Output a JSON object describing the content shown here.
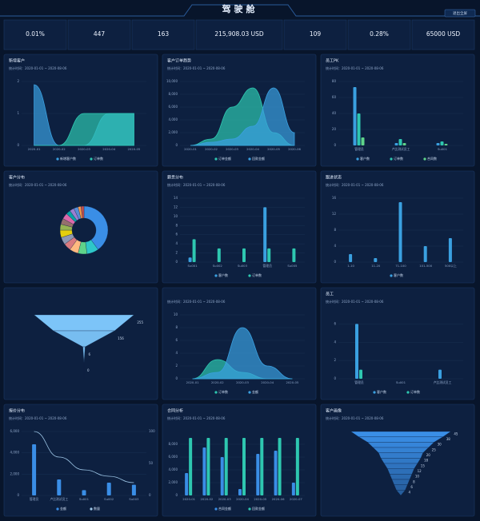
{
  "header": {
    "title": "驾驶舱",
    "button": "退出全屏"
  },
  "kpis": [
    "0.01%",
    "447",
    "163",
    "215,908.03 USD",
    "109",
    "0.28%",
    "65000 USD"
  ],
  "date": "统计时间：2020-01-01 ~ 2020-08-06",
  "panels": [
    {
      "title": "新增客户",
      "chart": {
        "type": "area",
        "categories": [
          "2020-01",
          "2020-02",
          "2020-03",
          "2020-04",
          "2020-05"
        ],
        "series": [
          {
            "name": "新增客户数",
            "color": "#3aa0e0",
            "values": [
              1.9,
              0,
              0,
              1,
              1
            ]
          },
          {
            "name": "订单数",
            "color": "#2ec7b0",
            "values": [
              0,
              0,
              1,
              1,
              1
            ]
          }
        ],
        "ylim": [
          0,
          2
        ],
        "yticks": [
          0,
          1,
          2
        ]
      }
    },
    {
      "title": "客户订单趋势",
      "chart": {
        "type": "area",
        "categories": [
          "2020-01",
          "2020-02",
          "2020-03",
          "2020-04",
          "2020-05",
          "2020-06"
        ],
        "series": [
          {
            "name": "订单金额",
            "color": "#2ec7b0",
            "values": [
              0,
              1000,
              6000,
              9000,
              2000,
              0
            ]
          },
          {
            "name": "回款金额",
            "color": "#3aa0e0",
            "values": [
              0,
              500,
              1000,
              3000,
              9000,
              2000
            ]
          }
        ],
        "ylim": [
          0,
          10000
        ],
        "yticks": [
          0,
          {
            "value": 2000,
            "label": "2,000"
          },
          {
            "value": 4000,
            "label": "4,000"
          },
          {
            "value": 6000,
            "label": "6,000"
          },
          {
            "value": 8000,
            "label": "8,000"
          },
          {
            "value": 10000,
            "label": "10,000"
          }
        ]
      }
    },
    {
      "title": "员工PK",
      "chart": {
        "type": "bar",
        "categories": [
          "管理员",
          "卢比测试员工",
          "Su001"
        ],
        "series": [
          {
            "name": "客户数",
            "color": "#3aa0e0",
            "values": [
              73,
              3,
              3
            ]
          },
          {
            "name": "订单数",
            "color": "#2ec7b0",
            "values": [
              40,
              8,
              5
            ]
          },
          {
            "name": "合同数",
            "color": "#5fd48a",
            "values": [
              10,
              3,
              2
            ]
          }
        ],
        "ylim": [
          0,
          80
        ],
        "yticks": [
          0,
          20,
          40,
          60,
          80
        ]
      }
    },
    {
      "title": "客户分布",
      "chart": {
        "type": "pie",
        "values": [
          40,
          8,
          6,
          6,
          5,
          5,
          5,
          4,
          4,
          4,
          3,
          3,
          3,
          2,
          2
        ],
        "colors": [
          "#3a8ee6",
          "#2ec7c9",
          "#5fd48a",
          "#ffb980",
          "#d87a80",
          "#8d98b3",
          "#e5cf0d",
          "#97b552",
          "#95706d",
          "#dc69aa",
          "#07a2a4",
          "#9a7fd1",
          "#588dd5",
          "#f5994e",
          "#c05050"
        ]
      }
    },
    {
      "title": "籍贯分布",
      "chart": {
        "type": "bar",
        "categories": [
          "Su001",
          "Su002",
          "Su003",
          "管理员",
          "Su005"
        ],
        "series": [
          {
            "name": "客户数",
            "color": "#3aa0e0",
            "values": [
              1,
              0,
              0,
              12,
              0
            ]
          },
          {
            "name": "订单数",
            "color": "#2ec7b0",
            "values": [
              5,
              3,
              3,
              3,
              3
            ]
          }
        ],
        "ylim": [
          0,
          14
        ],
        "yticks": [
          0,
          2,
          4,
          6,
          8,
          10,
          12,
          14
        ]
      }
    },
    {
      "title": "跟进状态",
      "chart": {
        "type": "bar",
        "categories": [
          "1-10",
          "11-20",
          "71-100",
          "101-500",
          "500以上"
        ],
        "series": [
          {
            "name": "客户数",
            "color": "#3aa0e0",
            "values": [
              2,
              1,
              15,
              4,
              6
            ]
          }
        ],
        "ylim": [
          0,
          16
        ],
        "yticks": [
          0,
          4,
          8,
          12,
          16
        ]
      }
    },
    {
      "chart": {
        "type": "funnel",
        "color": "#7cc4f8",
        "values": [
          255,
          156,
          6,
          0
        ]
      }
    },
    {
      "chart": {
        "type": "area",
        "categories": [
          "2020-01",
          "2020-02",
          "2020-03",
          "2020-04",
          "2020-05"
        ],
        "series": [
          {
            "name": "订单数",
            "color": "#2ec7b0",
            "values": [
              0,
              3,
              1,
              0,
              0
            ]
          },
          {
            "name": "金额",
            "color": "#3aa0e0",
            "values": [
              0,
              1,
              8,
              2,
              0
            ]
          }
        ],
        "ylim": [
          0,
          10
        ],
        "yticks": [
          0,
          2,
          4,
          6,
          8,
          10
        ]
      }
    },
    {
      "title": "员工",
      "chart": {
        "type": "bar",
        "categories": [
          "管理员",
          "Su001",
          "卢比测试员工"
        ],
        "series": [
          {
            "name": "客户数",
            "color": "#3aa0e0",
            "values": [
              6,
              0,
              1
            ]
          },
          {
            "name": "订单数",
            "color": "#2ec7b0",
            "values": [
              1,
              0,
              0
            ]
          }
        ],
        "ylim": [
          0,
          7
        ],
        "yticks": [
          0,
          2,
          4,
          6
        ]
      }
    },
    {
      "title": "报价分布",
      "chart": {
        "type": "combo",
        "categories": [
          "管理员",
          "卢比测试员工",
          "Su001",
          "Su002",
          "Su003"
        ],
        "series": [
          {
            "name": "金额",
            "color": "#3a8ee6",
            "values": [
              4800,
              1500,
              500,
              1200,
              1000
            ]
          },
          {
            "name": "数量",
            "color": "#9fc8e8",
            "axis": "y2",
            "values": [
              100,
              60,
              40,
              30,
              20
            ]
          }
        ],
        "ylim": [
          0,
          6000
        ],
        "yticks": [
          0,
          {
            "value": 2000,
            "label": "2,000"
          },
          {
            "value": 4000,
            "label": "4,000"
          },
          {
            "value": 6000,
            "label": "6,000"
          }
        ],
        "y2lim": [
          0,
          100
        ],
        "y2ticks": [
          0,
          50,
          100
        ]
      }
    },
    {
      "title": "合同分析",
      "chart": {
        "type": "bar",
        "categories": [
          "2020-01",
          "2020-02",
          "2020-03",
          "2020-04",
          "2020-05",
          "2020-06",
          "2020-07"
        ],
        "series": [
          {
            "name": "合同金额",
            "color": "#3a8ee6",
            "values": [
              3500,
              7500,
              6000,
              1000,
              6500,
              7000,
              2000
            ]
          },
          {
            "name": "回款金额",
            "color": "#2ec7b0",
            "values": [
              9000,
              9000,
              9000,
              9000,
              9000,
              9000,
              9000
            ]
          }
        ],
        "ylim": [
          0,
          10000
        ],
        "yticks": [
          0,
          {
            "value": 2000,
            "label": "2,000"
          },
          {
            "value": 4000,
            "label": "4,000"
          },
          {
            "value": 6000,
            "label": "6,000"
          },
          {
            "value": 8000,
            "label": "8,000"
          }
        ]
      }
    },
    {
      "title": "客户画像",
      "chart": {
        "type": "funnel",
        "color": "#3a8ee6",
        "values": [
          45,
          38,
          30,
          25,
          20,
          18,
          15,
          12,
          10,
          8,
          6,
          4
        ]
      }
    }
  ]
}
